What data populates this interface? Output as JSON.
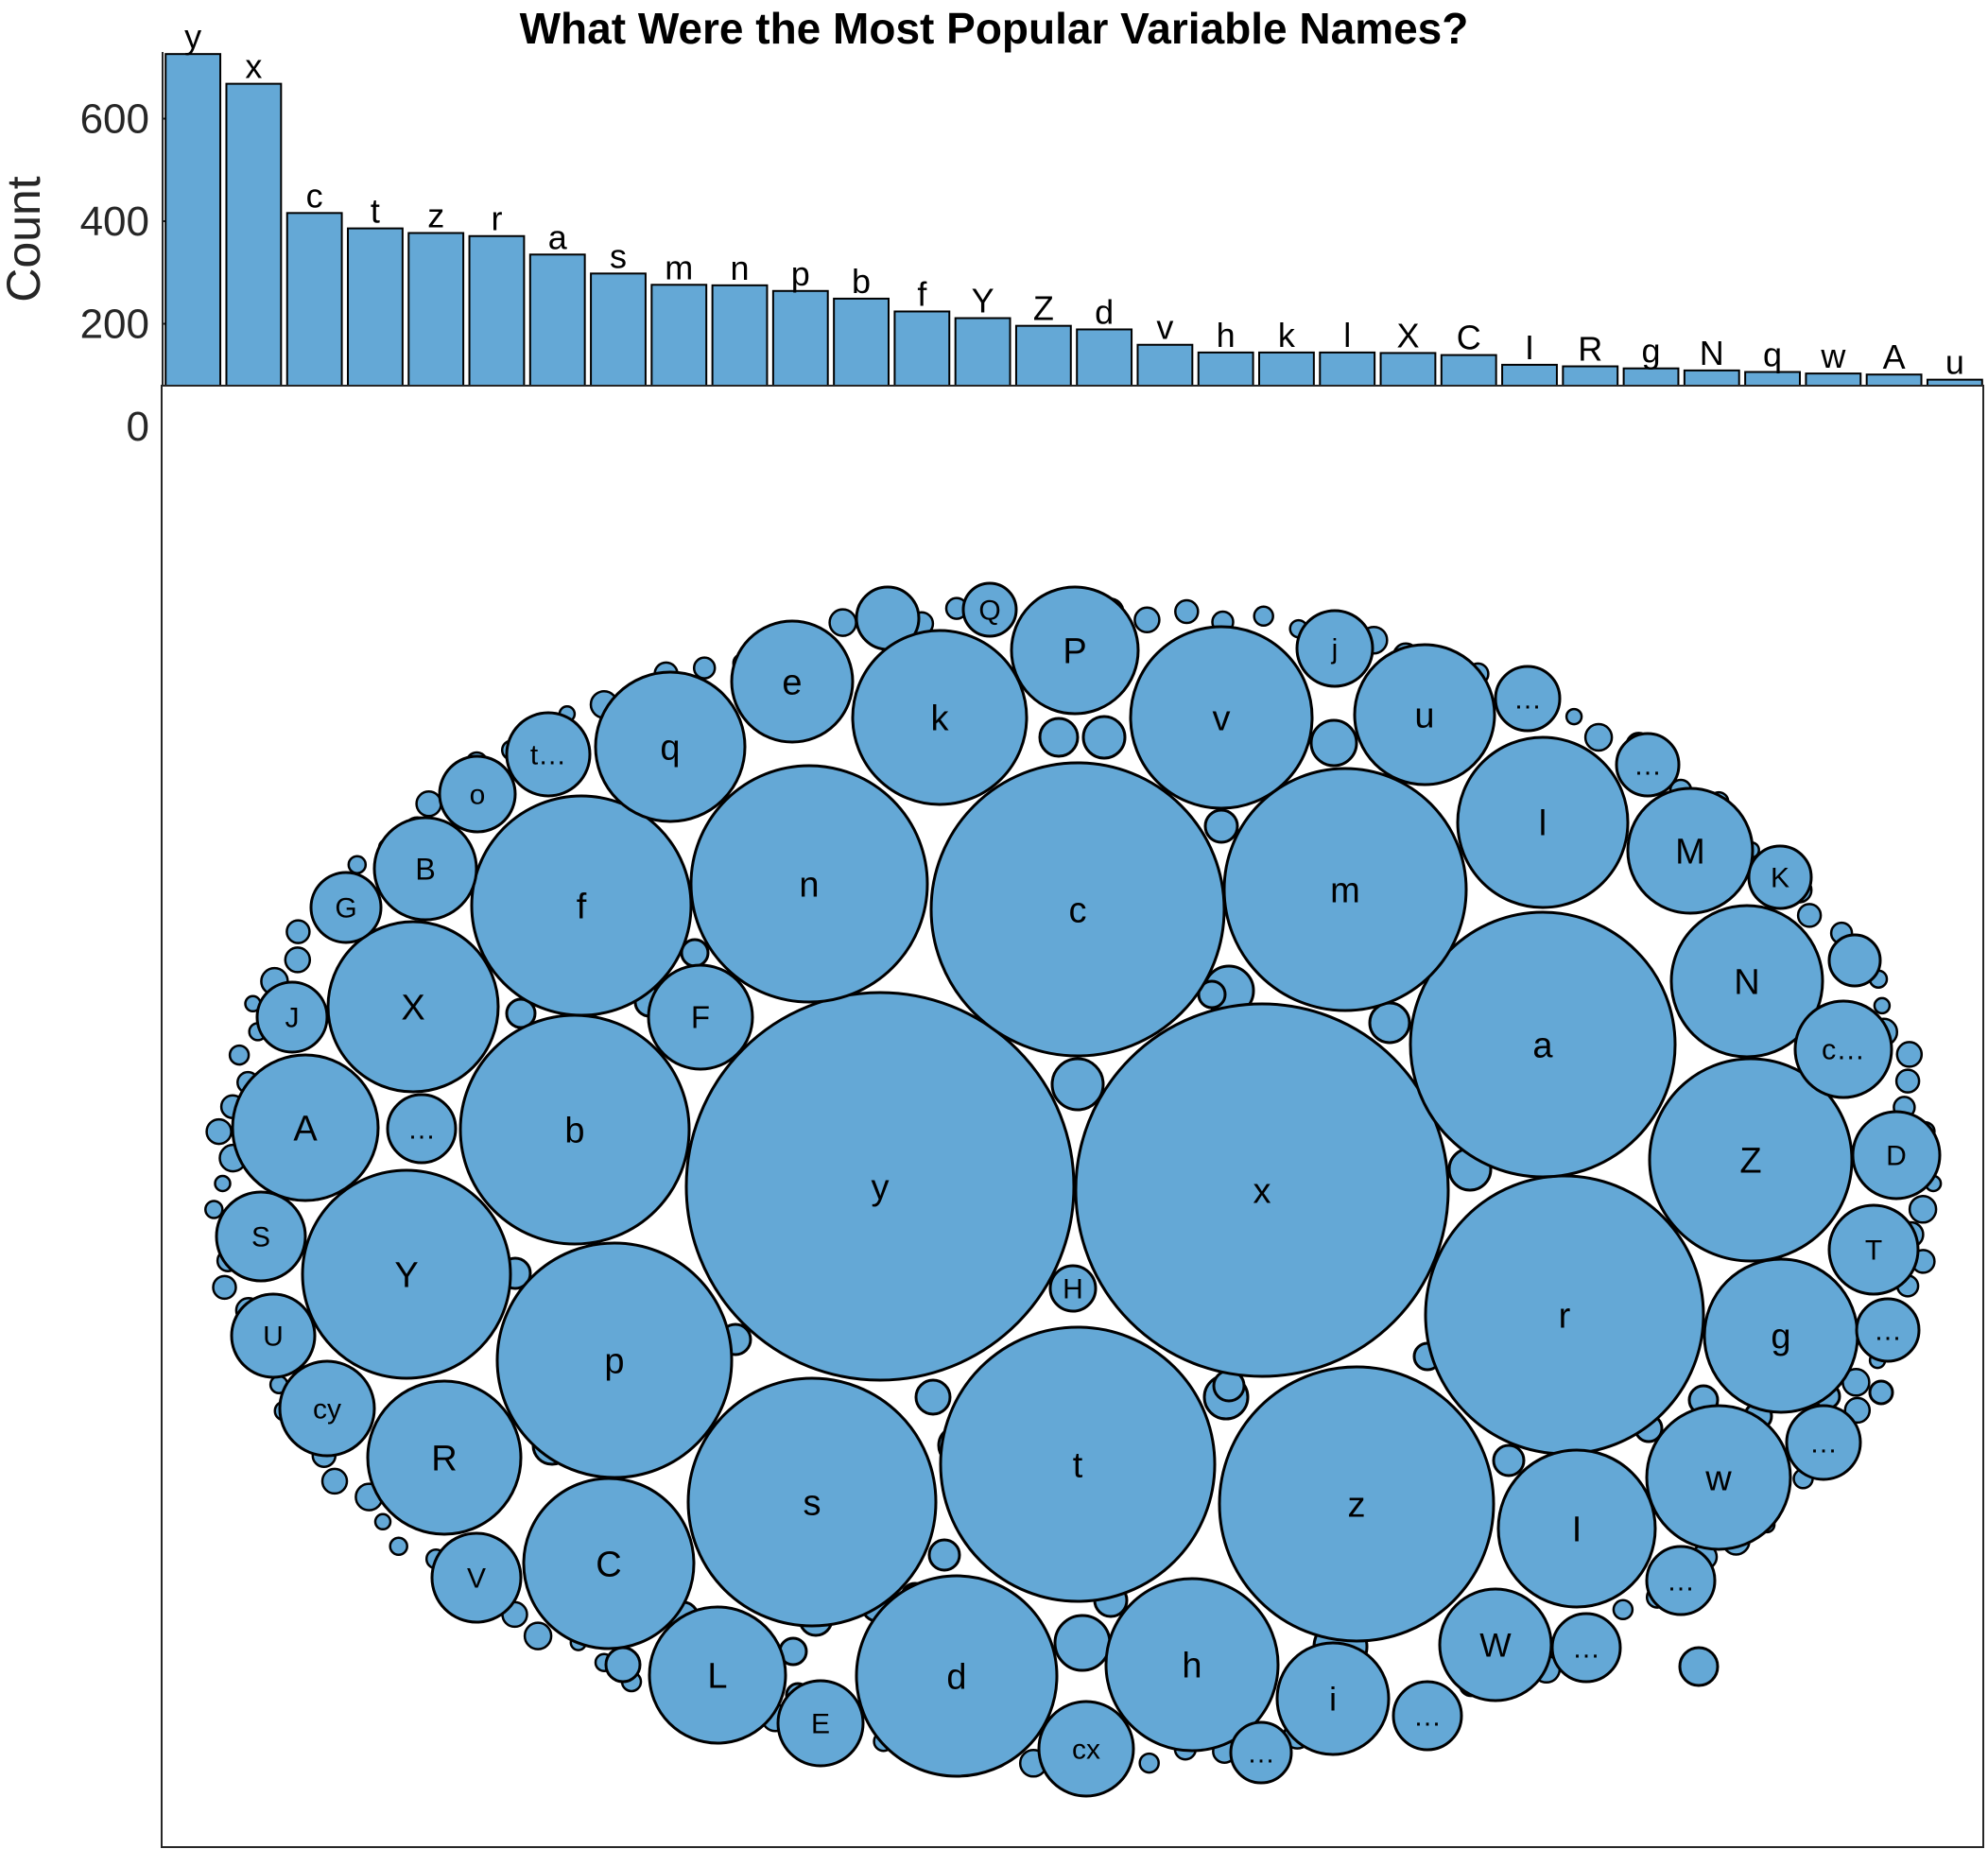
{
  "title": "What Were the Most Popular Variable Names?",
  "colors": {
    "fill": "#64a8d6",
    "stroke": "#000000",
    "axis": "#262626"
  },
  "chart_data": [
    {
      "type": "bar",
      "ylabel": "Count",
      "ylim": [
        0,
        730
      ],
      "yticks": [
        0,
        200,
        400,
        600
      ],
      "categories": [
        "y",
        "x",
        "c",
        "t",
        "z",
        "r",
        "a",
        "s",
        "m",
        "n",
        "p",
        "b",
        "f",
        "Y",
        "Z",
        "d",
        "v",
        "h",
        "k",
        "l",
        "X",
        "C",
        "I",
        "R",
        "g",
        "N",
        "q",
        "w",
        "A",
        "u"
      ],
      "values": [
        726,
        668,
        416,
        386,
        377,
        371,
        335,
        298,
        276,
        275,
        264,
        249,
        224,
        211,
        196,
        189,
        159,
        144,
        144,
        144,
        143,
        139,
        120,
        117,
        113,
        109,
        106,
        103,
        101,
        91
      ]
    },
    {
      "type": "bubble",
      "labels": [
        "y",
        "x",
        "c",
        "t",
        "z",
        "r",
        "a",
        "s",
        "m",
        "n",
        "p",
        "b",
        "f",
        "d",
        "Y",
        "Z",
        "l",
        "v",
        "h",
        "k",
        "X",
        "C",
        "I",
        "g",
        "A",
        "N",
        "q",
        "w",
        "u",
        "R",
        "L",
        "P",
        "e",
        "i",
        "W",
        "M",
        "B",
        "S",
        "U",
        "J",
        "G",
        "D",
        "T",
        "E",
        "F",
        "V",
        "Q",
        "j",
        "o",
        "K",
        "H",
        "cx",
        "cy",
        "t…",
        "c…",
        "…"
      ]
    }
  ]
}
